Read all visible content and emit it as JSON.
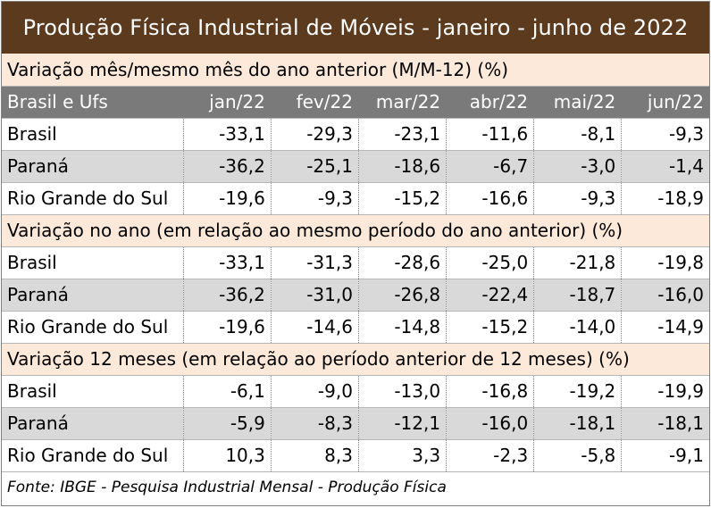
{
  "title": "Produção Física Industrial de Móveis - janeiro - junho de 2022",
  "header": {
    "label": "Brasil e Ufs",
    "months": [
      "jan/22",
      "fev/22",
      "mar/22",
      "abr/22",
      "mai/22",
      "jun/22"
    ]
  },
  "sections": [
    {
      "title": "Variação mês/mesmo mês do ano anterior (M/M-12) (%)",
      "rows": [
        {
          "name": "Brasil",
          "values": [
            "-33,1",
            "-29,3",
            "-23,1",
            "-11,6",
            "-8,1",
            "-9,3"
          ]
        },
        {
          "name": "Paraná",
          "values": [
            "-36,2",
            "-25,1",
            "-18,6",
            "-6,7",
            "-3,0",
            "-1,4"
          ]
        },
        {
          "name": "Rio Grande do Sul",
          "values": [
            "-19,6",
            "-9,3",
            "-15,2",
            "-16,6",
            "-9,3",
            "-18,9"
          ]
        }
      ]
    },
    {
      "title": "Variação no ano (em relação ao mesmo período do ano anterior) (%)",
      "rows": [
        {
          "name": "Brasil",
          "values": [
            "-33,1",
            "-31,3",
            "-28,6",
            "-25,0",
            "-21,8",
            "-19,8"
          ]
        },
        {
          "name": "Paraná",
          "values": [
            "-36,2",
            "-31,0",
            "-26,8",
            "-22,4",
            "-18,7",
            "-16,0"
          ]
        },
        {
          "name": "Rio Grande do Sul",
          "values": [
            "-19,6",
            "-14,6",
            "-14,8",
            "-15,2",
            "-14,0",
            "-14,9"
          ]
        }
      ]
    },
    {
      "title": "Variação 12 meses (em relação ao período anterior de 12 meses) (%)",
      "rows": [
        {
          "name": "Brasil",
          "values": [
            "-6,1",
            "-9,0",
            "-13,0",
            "-16,8",
            "-19,2",
            "-19,9"
          ]
        },
        {
          "name": "Paraná",
          "values": [
            "-5,9",
            "-8,3",
            "-12,1",
            "-16,0",
            "-18,1",
            "-18,1"
          ]
        },
        {
          "name": "Rio Grande do Sul",
          "values": [
            "10,3",
            "8,3",
            "3,3",
            "-2,3",
            "-5,8",
            "-9,1"
          ]
        }
      ]
    }
  ],
  "footer": "Fonte: IBGE - Pesquisa Industrial Mensal - Produção Física"
}
